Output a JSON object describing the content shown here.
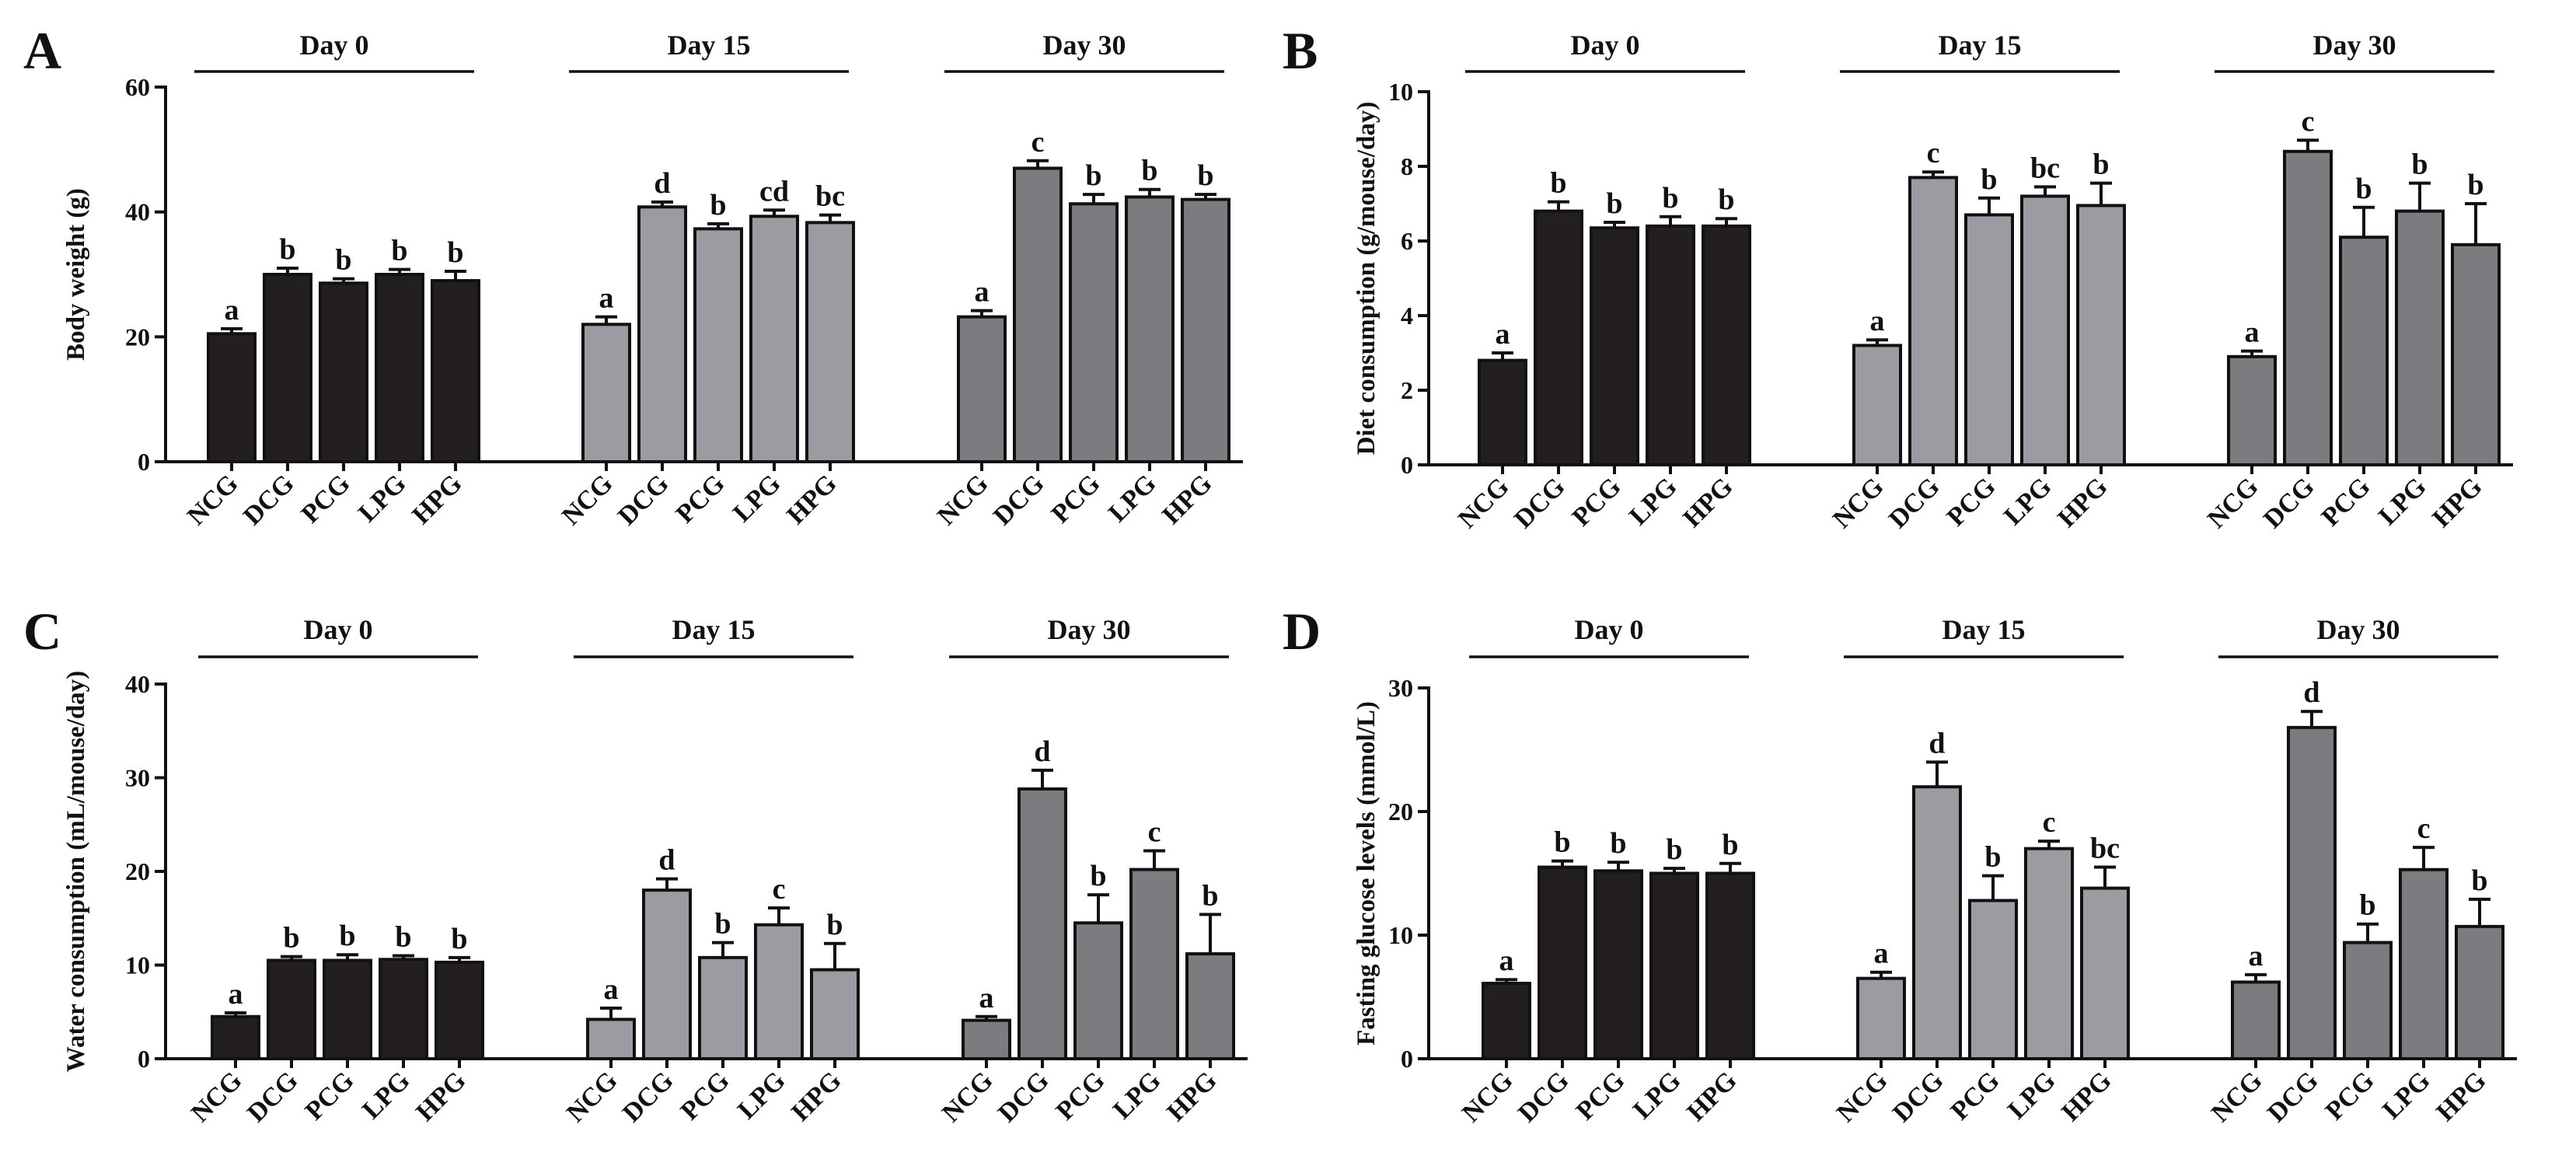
{
  "chart_data": [
    {
      "panel": "A",
      "type": "bar",
      "ylabel": "Body weight (g)",
      "ylim": [
        0,
        60
      ],
      "yticks": [
        0,
        20,
        40,
        60
      ],
      "categories": [
        "NCG",
        "DCG",
        "PCG",
        "LPG",
        "HPG"
      ],
      "groups": [
        {
          "label": "Day 0",
          "color": "#231f20",
          "values": [
            20.5,
            30.0,
            28.6,
            30.0,
            29.0
          ],
          "errors": [
            0.8,
            1.0,
            0.7,
            0.8,
            1.5
          ],
          "letters": [
            "a",
            "b",
            "b",
            "b",
            "b"
          ]
        },
        {
          "label": "Day 15",
          "color": "#9a9ca1",
          "values": [
            22.0,
            40.8,
            37.3,
            39.3,
            38.3
          ],
          "errors": [
            1.2,
            0.8,
            0.8,
            1.0,
            1.2
          ],
          "letters": [
            "a",
            "d",
            "b",
            "cd",
            "bc"
          ]
        },
        {
          "label": "Day 30",
          "color": "#7a7c80",
          "values": [
            23.2,
            47.0,
            41.3,
            42.4,
            42.0
          ],
          "errors": [
            1.0,
            1.2,
            1.5,
            1.2,
            0.8
          ],
          "letters": [
            "a",
            "c",
            "b",
            "b",
            "b"
          ]
        }
      ]
    },
    {
      "panel": "B",
      "type": "bar",
      "ylabel": "Diet consumption (g/mouse/day)",
      "ylim": [
        0,
        10
      ],
      "yticks": [
        0,
        2,
        4,
        6,
        8,
        10
      ],
      "categories": [
        "NCG",
        "DCG",
        "PCG",
        "LPG",
        "HPG"
      ],
      "groups": [
        {
          "label": "Day 0",
          "color": "#231f20",
          "values": [
            2.8,
            6.8,
            6.35,
            6.4,
            6.4
          ],
          "errors": [
            0.2,
            0.25,
            0.15,
            0.25,
            0.2
          ],
          "letters": [
            "a",
            "b",
            "b",
            "b",
            "b"
          ]
        },
        {
          "label": "Day 15",
          "color": "#9a9ca1",
          "values": [
            3.2,
            7.7,
            6.7,
            7.2,
            6.95
          ],
          "errors": [
            0.15,
            0.15,
            0.45,
            0.25,
            0.6
          ],
          "letters": [
            "a",
            "c",
            "b",
            "bc",
            "b"
          ]
        },
        {
          "label": "Day 30",
          "color": "#7a7c80",
          "values": [
            2.9,
            8.4,
            6.1,
            6.8,
            5.9
          ],
          "errors": [
            0.15,
            0.3,
            0.8,
            0.75,
            1.1
          ],
          "letters": [
            "a",
            "c",
            "b",
            "b",
            "b"
          ]
        }
      ]
    },
    {
      "panel": "C",
      "type": "bar",
      "ylabel": "Water consumption (mL/mouse/day)",
      "ylim": [
        0,
        40
      ],
      "yticks": [
        0,
        10,
        20,
        30,
        40
      ],
      "categories": [
        "NCG",
        "DCG",
        "PCG",
        "LPG",
        "HPG"
      ],
      "groups": [
        {
          "label": "Day 0",
          "color": "#231f20",
          "values": [
            4.5,
            10.5,
            10.5,
            10.6,
            10.3
          ],
          "errors": [
            0.4,
            0.4,
            0.6,
            0.4,
            0.5
          ],
          "letters": [
            "a",
            "b",
            "b",
            "b",
            "b"
          ]
        },
        {
          "label": "Day 15",
          "color": "#9a9ca1",
          "values": [
            4.2,
            18.0,
            10.8,
            14.3,
            9.5
          ],
          "errors": [
            1.2,
            1.2,
            1.6,
            1.8,
            2.8
          ],
          "letters": [
            "a",
            "d",
            "b",
            "c",
            "b"
          ]
        },
        {
          "label": "Day 30",
          "color": "#7a7c80",
          "values": [
            4.1,
            28.8,
            14.5,
            20.2,
            11.2
          ],
          "errors": [
            0.4,
            2.0,
            3.0,
            2.0,
            4.2
          ],
          "letters": [
            "a",
            "d",
            "b",
            "c",
            "b"
          ]
        }
      ]
    },
    {
      "panel": "D",
      "type": "bar",
      "ylabel": "Fasting glucose levels (mmol/L)",
      "ylim": [
        0,
        30
      ],
      "yticks": [
        0,
        10,
        20,
        30
      ],
      "categories": [
        "NCG",
        "DCG",
        "PCG",
        "LPG",
        "HPG"
      ],
      "groups": [
        {
          "label": "Day 0",
          "color": "#231f20",
          "values": [
            6.1,
            15.5,
            15.2,
            15.0,
            15.0
          ],
          "errors": [
            0.3,
            0.5,
            0.7,
            0.4,
            0.8
          ],
          "letters": [
            "a",
            "b",
            "b",
            "b",
            "b"
          ]
        },
        {
          "label": "Day 15",
          "color": "#9a9ca1",
          "values": [
            6.5,
            22.0,
            12.8,
            17.0,
            13.8
          ],
          "errors": [
            0.5,
            2.0,
            2.0,
            0.6,
            1.7
          ],
          "letters": [
            "a",
            "d",
            "b",
            "c",
            "bc"
          ]
        },
        {
          "label": "Day 30",
          "color": "#7a7c80",
          "values": [
            6.2,
            26.8,
            9.4,
            15.3,
            10.7
          ],
          "errors": [
            0.6,
            1.3,
            1.5,
            1.8,
            2.2
          ],
          "letters": [
            "a",
            "d",
            "b",
            "c",
            "b"
          ]
        }
      ]
    }
  ]
}
